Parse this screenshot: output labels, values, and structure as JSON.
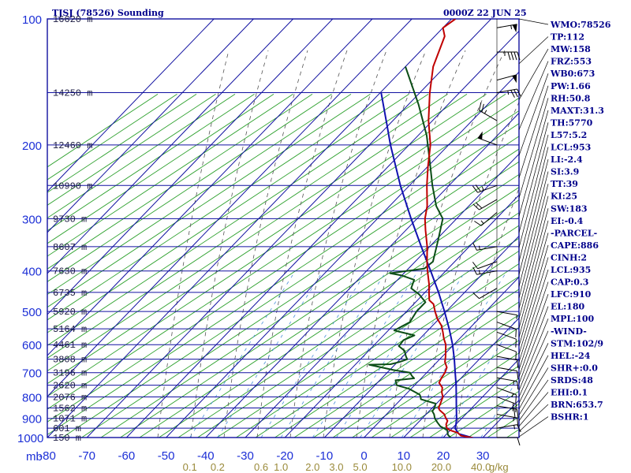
{
  "header": {
    "title": "TJSJ (78526) Sounding",
    "time": "0000Z 22 JUN 25"
  },
  "colors": {
    "frame": "#1010a0",
    "isotherm": "#1010a0",
    "dry_adiabat": "#2ca02c",
    "moist_adiabat": "#555555",
    "mixing_ratio": "#4a90d9",
    "temperature": "#c00000",
    "dewpoint": "#0b4d16",
    "parcel": "#1111b0",
    "wind": "#000000"
  },
  "chart_data": {
    "type": "line",
    "title": "TJSJ (78526) Sounding",
    "xlabel": "",
    "ylabel": "mb",
    "xlim": [
      -80,
      40
    ],
    "ylim_pressure": [
      1000,
      100
    ],
    "y_scale": "log",
    "grid": true,
    "pressure_ticks": [
      "100",
      "200",
      "300",
      "400",
      "500",
      "600",
      "700",
      "800",
      "900",
      "1000"
    ],
    "temp_ticks": [
      "-80",
      "-70",
      "-60",
      "-50",
      "-40",
      "-30",
      "-20",
      "-10",
      "0",
      "10",
      "20",
      "30"
    ],
    "mixing_ratio_labels": [
      {
        "text": "0.1",
        "t": -44
      },
      {
        "text": "0.2",
        "t": -37
      },
      {
        "text": "0.6",
        "t": -26
      },
      {
        "text": "1.0",
        "t": -21
      },
      {
        "text": "2.0",
        "t": -13
      },
      {
        "text": "3.0",
        "t": -7
      },
      {
        "text": "5.0",
        "t": -1
      },
      {
        "text": "10.0",
        "t": 9.5
      },
      {
        "text": "20.0",
        "t": 19.5
      },
      {
        "text": "40.0",
        "t": 29.5
      },
      {
        "text": "g/kg",
        "t": 34
      }
    ],
    "height_labels": [
      {
        "p": 100,
        "text": "16620 m"
      },
      {
        "p": 150,
        "text": "14250 m"
      },
      {
        "p": 200,
        "text": "12460 m"
      },
      {
        "p": 250,
        "text": "10990 m"
      },
      {
        "p": 300,
        "text": "9730 m"
      },
      {
        "p": 350,
        "text": "8607 m"
      },
      {
        "p": 400,
        "text": "7630 m"
      },
      {
        "p": 450,
        "text": "6735 m"
      },
      {
        "p": 500,
        "text": "5920 m"
      },
      {
        "p": 550,
        "text": "5164 m"
      },
      {
        "p": 600,
        "text": "4461 m"
      },
      {
        "p": 650,
        "text": "3808 m"
      },
      {
        "p": 700,
        "text": "3196 m"
      },
      {
        "p": 750,
        "text": "2620 m"
      },
      {
        "p": 800,
        "text": "2076 m"
      },
      {
        "p": 850,
        "text": "1562 m"
      },
      {
        "p": 900,
        "text": "1071 m"
      },
      {
        "p": 950,
        "text": "601 m"
      },
      {
        "p": 1000,
        "text": "150 m"
      }
    ],
    "series": [
      {
        "name": "Temperature",
        "points": [
          [
            1002,
            27.6
          ],
          [
            990,
            24
          ],
          [
            975,
            22.6
          ],
          [
            960,
            19.8
          ],
          [
            948,
            18.5
          ],
          [
            930,
            17.5
          ],
          [
            912,
            17
          ],
          [
            900,
            16
          ],
          [
            880,
            14.6
          ],
          [
            860,
            12.4
          ],
          [
            850,
            11.6
          ],
          [
            830,
            11
          ],
          [
            800,
            10
          ],
          [
            780,
            8.6
          ],
          [
            760,
            7.6
          ],
          [
            740,
            5.6
          ],
          [
            720,
            5
          ],
          [
            700,
            4.6
          ],
          [
            680,
            3.8
          ],
          [
            660,
            2
          ],
          [
            640,
            0.8
          ],
          [
            620,
            -0.6
          ],
          [
            600,
            -2
          ],
          [
            580,
            -4
          ],
          [
            560,
            -5.8
          ],
          [
            540,
            -7.8
          ],
          [
            520,
            -10.5
          ],
          [
            500,
            -12.8
          ],
          [
            480,
            -15
          ],
          [
            470,
            -17
          ],
          [
            450,
            -19
          ],
          [
            430,
            -21
          ],
          [
            400,
            -24.6
          ],
          [
            380,
            -27
          ],
          [
            350,
            -30.6
          ],
          [
            320,
            -35
          ],
          [
            300,
            -38
          ],
          [
            280,
            -40.5
          ],
          [
            250,
            -45.6
          ],
          [
            225,
            -50
          ],
          [
            200,
            -54.6
          ],
          [
            175,
            -61
          ],
          [
            150,
            -67.5
          ],
          [
            130,
            -73
          ],
          [
            110,
            -77.5
          ],
          [
            105,
            -80
          ],
          [
            100,
            -79
          ]
        ]
      },
      {
        "name": "Dewpoint",
        "points": [
          [
            1002,
            22
          ],
          [
            985,
            20.5
          ],
          [
            960,
            19.2
          ],
          [
            940,
            16.5
          ],
          [
            920,
            14.8
          ],
          [
            900,
            13.2
          ],
          [
            880,
            12
          ],
          [
            865,
            10.8
          ],
          [
            850,
            10.6
          ],
          [
            830,
            9.8
          ],
          [
            810,
            5
          ],
          [
            800,
            4.4
          ],
          [
            790,
            3.6
          ],
          [
            780,
            2
          ],
          [
            765,
            -0.5
          ],
          [
            750,
            -4.5
          ],
          [
            730,
            -6
          ],
          [
            722,
            -1.8
          ],
          [
            712,
            -3
          ],
          [
            700,
            -4.2
          ],
          [
            690,
            -9
          ],
          [
            670,
            -16.5
          ],
          [
            668,
            -11.2
          ],
          [
            660,
            -9.5
          ],
          [
            650,
            -8.2
          ],
          [
            640,
            -9.2
          ],
          [
            620,
            -11
          ],
          [
            605,
            -13.5
          ],
          [
            585,
            -13.8
          ],
          [
            570,
            -12.2
          ],
          [
            555,
            -18.5
          ],
          [
            530,
            -16.6
          ],
          [
            500,
            -17.5
          ],
          [
            475,
            -17.5
          ],
          [
            455,
            -21
          ],
          [
            440,
            -24.5
          ],
          [
            420,
            -25.8
          ],
          [
            410,
            -30
          ],
          [
            405,
            -33.5
          ],
          [
            395,
            -26
          ],
          [
            380,
            -25.5
          ],
          [
            340,
            -29.2
          ],
          [
            300,
            -33.5
          ],
          [
            280,
            -38.2
          ],
          [
            250,
            -44.2
          ],
          [
            220,
            -50.5
          ],
          [
            190,
            -57.8
          ],
          [
            160,
            -67.5
          ],
          [
            130,
            -80
          ]
        ]
      },
      {
        "name": "Parcel",
        "points": [
          [
            1002,
            27.6
          ],
          [
            980,
            23
          ],
          [
            950,
            20.7
          ],
          [
            935,
            20.2
          ],
          [
            900,
            18.7
          ],
          [
            850,
            16.1
          ],
          [
            800,
            13.4
          ],
          [
            750,
            10.5
          ],
          [
            700,
            7.2
          ],
          [
            650,
            3.7
          ],
          [
            600,
            -0.3
          ],
          [
            550,
            -5
          ],
          [
            500,
            -10.4
          ],
          [
            450,
            -16.6
          ],
          [
            400,
            -23.8
          ],
          [
            350,
            -32.1
          ],
          [
            300,
            -41.5
          ],
          [
            250,
            -52.3
          ],
          [
            200,
            -64.7
          ],
          [
            180,
            -70.2
          ],
          [
            150,
            -79.8
          ]
        ]
      }
    ]
  },
  "indices": [
    "WMO:78526",
    "TP:112",
    "MW:158",
    "FRZ:553",
    "WB0:673",
    "PW:1.66",
    "RH:50.8",
    "MAXT:31.3",
    "TH:5770",
    "L57:5.2",
    "LCL:953",
    "LI:-2.4",
    "SI:3.9",
    "TT:39",
    "KI:25",
    "SW:183",
    "EI:-0.4",
    "-PARCEL-",
    "CAPE:886",
    "CINH:2",
    "LCL:935",
    "CAP:0.3",
    "LFC:910",
    "EL:180",
    "MPL:100",
    "-WIND-",
    "STM:102/9",
    "HEL:-24",
    "SHR+:0.0",
    "SRDS:48",
    "EHI:0.1",
    "BRN:653.7",
    "BSHR:1"
  ],
  "winds": [
    {
      "p": 105,
      "dir": 80,
      "spd": 55
    },
    {
      "p": 120,
      "dir": 90,
      "spd": 45
    },
    {
      "p": 140,
      "dir": 75,
      "spd": 50
    },
    {
      "p": 150,
      "dir": 80,
      "spd": 35
    },
    {
      "p": 175,
      "dir": 300,
      "spd": 25
    },
    {
      "p": 200,
      "dir": 290,
      "spd": 50
    },
    {
      "p": 250,
      "dir": 250,
      "spd": 25
    },
    {
      "p": 270,
      "dir": 240,
      "spd": 20
    },
    {
      "p": 290,
      "dir": 230,
      "spd": 15
    },
    {
      "p": 350,
      "dir": 260,
      "spd": 15
    },
    {
      "p": 380,
      "dir": 250,
      "spd": 10
    },
    {
      "p": 400,
      "dir": 260,
      "spd": 15
    },
    {
      "p": 440,
      "dir": 240,
      "spd": 10
    },
    {
      "p": 500,
      "dir": 100,
      "spd": 5
    },
    {
      "p": 530,
      "dir": 110,
      "spd": 10
    },
    {
      "p": 560,
      "dir": 110,
      "spd": 10
    },
    {
      "p": 600,
      "dir": 110,
      "spd": 10
    },
    {
      "p": 640,
      "dir": 100,
      "spd": 10
    },
    {
      "p": 680,
      "dir": 100,
      "spd": 10
    },
    {
      "p": 720,
      "dir": 100,
      "spd": 15
    },
    {
      "p": 760,
      "dir": 110,
      "spd": 15
    },
    {
      "p": 800,
      "dir": 110,
      "spd": 20
    },
    {
      "p": 840,
      "dir": 100,
      "spd": 20
    },
    {
      "p": 880,
      "dir": 100,
      "spd": 15
    },
    {
      "p": 950,
      "dir": 80,
      "spd": 15
    },
    {
      "p": 1000,
      "dir": 90,
      "spd": 10
    }
  ]
}
